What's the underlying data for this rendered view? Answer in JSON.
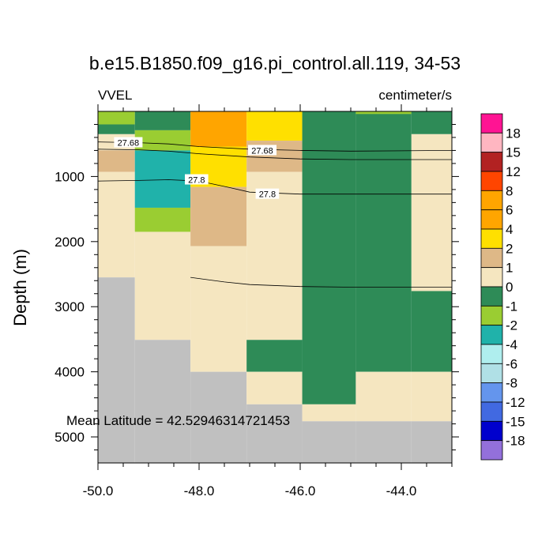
{
  "chart_data": {
    "type": "heatmap",
    "title": "b.e15.B1850.f09_g16.pi_control.all.119, 34-53",
    "variable_label": "VVEL",
    "units_label": "centimeter/s",
    "ylabel": "Depth (m)",
    "xlabel": "",
    "xlim": [
      -50.0,
      -43.0
    ],
    "ylim": [
      0,
      5400
    ],
    "x_ticks": [
      -50.0,
      -48.0,
      -46.0,
      -44.0
    ],
    "x_tick_labels": [
      "-50.0",
      "-48.0",
      "-46.0",
      "-44.0"
    ],
    "y_ticks": [
      1000,
      2000,
      3000,
      4000,
      5000
    ],
    "y_tick_labels": [
      "1000",
      "2000",
      "3000",
      "4000",
      "5000"
    ],
    "annotation": "Mean Latitude = 42.52946314721453",
    "colorbar": {
      "labels": [
        "18",
        "15",
        "12",
        "8",
        "6",
        "4",
        "2",
        "1",
        "0",
        "-1",
        "-2",
        "-4",
        "-6",
        "-8",
        "-12",
        "-15",
        "-18"
      ],
      "colors": [
        "#ff1493",
        "#ffb6c1",
        "#b22222",
        "#ff4500",
        "#ffa500",
        "#ffa500",
        "#ffe000",
        "#deb887",
        "#f5e6c0",
        "#2e8b57",
        "#9acd32",
        "#20b2aa",
        "#afeeee",
        "#b0e0e6",
        "#6495ed",
        "#4169e1",
        "#0000cd",
        "#9370db"
      ]
    },
    "land_color": "#c0c0c0",
    "cells": [
      {
        "x": [
          -50.0,
          -49.27
        ],
        "y": [
          0,
          200
        ],
        "color": "#9acd32"
      },
      {
        "x": [
          -50.0,
          -49.27
        ],
        "y": [
          200,
          350
        ],
        "color": "#2e8b57"
      },
      {
        "x": [
          -50.0,
          -49.27
        ],
        "y": [
          350,
          600
        ],
        "color": "#f5e6c0"
      },
      {
        "x": [
          -50.0,
          -49.27
        ],
        "y": [
          600,
          930
        ],
        "color": "#deb887"
      },
      {
        "x": [
          -50.0,
          -49.27
        ],
        "y": [
          930,
          2550
        ],
        "color": "#f5e6c0"
      },
      {
        "x": [
          -50.0,
          -49.27
        ],
        "y": [
          2550,
          5400
        ],
        "color": "#c0c0c0"
      },
      {
        "x": [
          -49.27,
          -48.17
        ],
        "y": [
          0,
          290
        ],
        "color": "#2e8b57"
      },
      {
        "x": [
          -49.27,
          -48.17
        ],
        "y": [
          290,
          600
        ],
        "color": "#9acd32"
      },
      {
        "x": [
          -49.27,
          -48.17
        ],
        "y": [
          600,
          1480
        ],
        "color": "#20b2aa"
      },
      {
        "x": [
          -49.27,
          -48.17
        ],
        "y": [
          1480,
          1850
        ],
        "color": "#9acd32"
      },
      {
        "x": [
          -49.27,
          -48.17
        ],
        "y": [
          1850,
          3510
        ],
        "color": "#f5e6c0"
      },
      {
        "x": [
          -49.27,
          -48.17
        ],
        "y": [
          3510,
          5400
        ],
        "color": "#c0c0c0"
      },
      {
        "x": [
          -48.17,
          -47.06
        ],
        "y": [
          0,
          540
        ],
        "color": "#ffa500"
      },
      {
        "x": [
          -48.17,
          -47.06
        ],
        "y": [
          540,
          1160
        ],
        "color": "#ffe000"
      },
      {
        "x": [
          -48.17,
          -47.06
        ],
        "y": [
          1160,
          2070
        ],
        "color": "#deb887"
      },
      {
        "x": [
          -48.17,
          -47.06
        ],
        "y": [
          2070,
          4000
        ],
        "color": "#f5e6c0"
      },
      {
        "x": [
          -48.17,
          -47.06
        ],
        "y": [
          4000,
          5400
        ],
        "color": "#c0c0c0"
      },
      {
        "x": [
          -47.06,
          -45.96
        ],
        "y": [
          0,
          450
        ],
        "color": "#ffe000"
      },
      {
        "x": [
          -47.06,
          -45.96
        ],
        "y": [
          450,
          930
        ],
        "color": "#deb887"
      },
      {
        "x": [
          -47.06,
          -45.96
        ],
        "y": [
          930,
          3510
        ],
        "color": "#f5e6c0"
      },
      {
        "x": [
          -47.06,
          -45.96
        ],
        "y": [
          3510,
          4000
        ],
        "color": "#2e8b57"
      },
      {
        "x": [
          -47.06,
          -45.96
        ],
        "y": [
          4000,
          4500
        ],
        "color": "#f5e6c0"
      },
      {
        "x": [
          -47.06,
          -45.96
        ],
        "y": [
          4500,
          5400
        ],
        "color": "#c0c0c0"
      },
      {
        "x": [
          -45.96,
          -44.9
        ],
        "y": [
          0,
          4500
        ],
        "color": "#2e8b57"
      },
      {
        "x": [
          -45.96,
          -44.9
        ],
        "y": [
          4500,
          4760
        ],
        "color": "#f5e6c0"
      },
      {
        "x": [
          -45.96,
          -44.9
        ],
        "y": [
          4760,
          5400
        ],
        "color": "#c0c0c0"
      },
      {
        "x": [
          -44.9,
          -43.8
        ],
        "y": [
          0,
          4000
        ],
        "color": "#2e8b57"
      },
      {
        "x": [
          -44.9,
          -43.8
        ],
        "y": [
          4000,
          4760
        ],
        "color": "#f5e6c0"
      },
      {
        "x": [
          -44.9,
          -43.8
        ],
        "y": [
          4760,
          5400
        ],
        "color": "#c0c0c0"
      },
      {
        "x": [
          -44.9,
          -43.8
        ],
        "y": [
          0,
          40
        ],
        "color": "#9acd32"
      },
      {
        "x": [
          -43.8,
          -43.0
        ],
        "y": [
          0,
          350
        ],
        "color": "#2e8b57"
      },
      {
        "x": [
          -43.8,
          -43.0
        ],
        "y": [
          350,
          2760
        ],
        "color": "#f5e6c0"
      },
      {
        "x": [
          -43.8,
          -43.0
        ],
        "y": [
          2760,
          4000
        ],
        "color": "#2e8b57"
      },
      {
        "x": [
          -43.8,
          -43.0
        ],
        "y": [
          4000,
          4760
        ],
        "color": "#f5e6c0"
      },
      {
        "x": [
          -43.8,
          -43.0
        ],
        "y": [
          4760,
          5400
        ],
        "color": "#c0c0c0"
      }
    ],
    "contours": [
      {
        "label": "27.68",
        "points": [
          [
            -50.0,
            470
          ],
          [
            -49.2,
            480
          ],
          [
            -48.6,
            500
          ],
          [
            -48.0,
            540
          ],
          [
            -47.0,
            580
          ],
          [
            -46.0,
            600
          ],
          [
            -45.0,
            610
          ],
          [
            -43.0,
            600
          ]
        ],
        "label_at": [
          [
            -49.4,
            480
          ],
          [
            -46.75,
            600
          ]
        ]
      },
      {
        "label": "",
        "points": [
          [
            -50.0,
            580
          ],
          [
            -49.2,
            590
          ],
          [
            -48.6,
            610
          ],
          [
            -48.0,
            650
          ],
          [
            -47.0,
            700
          ],
          [
            -46.0,
            730
          ],
          [
            -45.0,
            740
          ],
          [
            -43.0,
            740
          ]
        ],
        "label_at": []
      },
      {
        "label": "27.8",
        "points": [
          [
            -50.0,
            1070
          ],
          [
            -49.2,
            1060
          ],
          [
            -48.6,
            1050
          ],
          [
            -48.0,
            1070
          ],
          [
            -47.4,
            1170
          ],
          [
            -47.0,
            1240
          ],
          [
            -46.0,
            1270
          ],
          [
            -45.0,
            1270
          ],
          [
            -43.0,
            1270
          ]
        ],
        "label_at": [
          [
            -48.05,
            1050
          ],
          [
            -46.65,
            1270
          ]
        ]
      },
      {
        "label": "",
        "points": [
          [
            -48.17,
            2550
          ],
          [
            -47.5,
            2620
          ],
          [
            -47.0,
            2660
          ],
          [
            -46.0,
            2690
          ],
          [
            -45.0,
            2700
          ],
          [
            -43.0,
            2700
          ]
        ],
        "label_at": []
      }
    ]
  }
}
